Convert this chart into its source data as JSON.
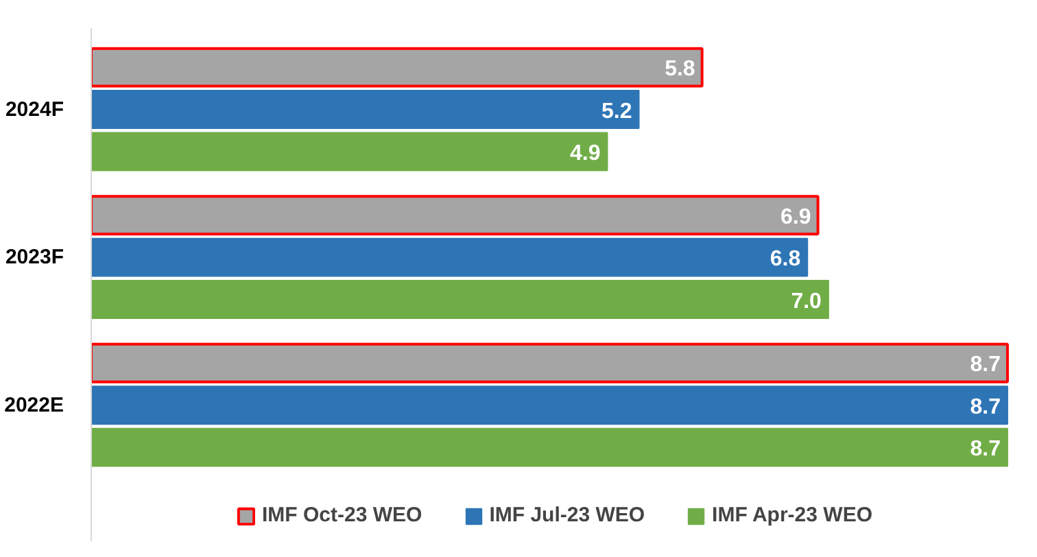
{
  "chart_data": {
    "type": "bar",
    "orientation": "horizontal",
    "categories": [
      "2024F",
      "2023F",
      "2022E"
    ],
    "series": [
      {
        "name": "IMF Oct-23 WEO",
        "color": "#a5a5a5",
        "values": [
          5.8,
          6.9,
          8.7
        ],
        "value_labels": [
          "5.8",
          "6.9",
          "8.7"
        ]
      },
      {
        "name": "IMF Jul-23 WEO",
        "color": "#2e75b6",
        "values": [
          5.2,
          6.8,
          8.7
        ],
        "value_labels": [
          "5.2",
          "6.8",
          "8.7"
        ]
      },
      {
        "name": "IMF Apr-23 WEO",
        "color": "#70ad47",
        "values": [
          4.9,
          7.0,
          8.7
        ],
        "value_labels": [
          "4.9",
          "7.0",
          "8.7"
        ]
      }
    ],
    "legend": "bottom"
  }
}
